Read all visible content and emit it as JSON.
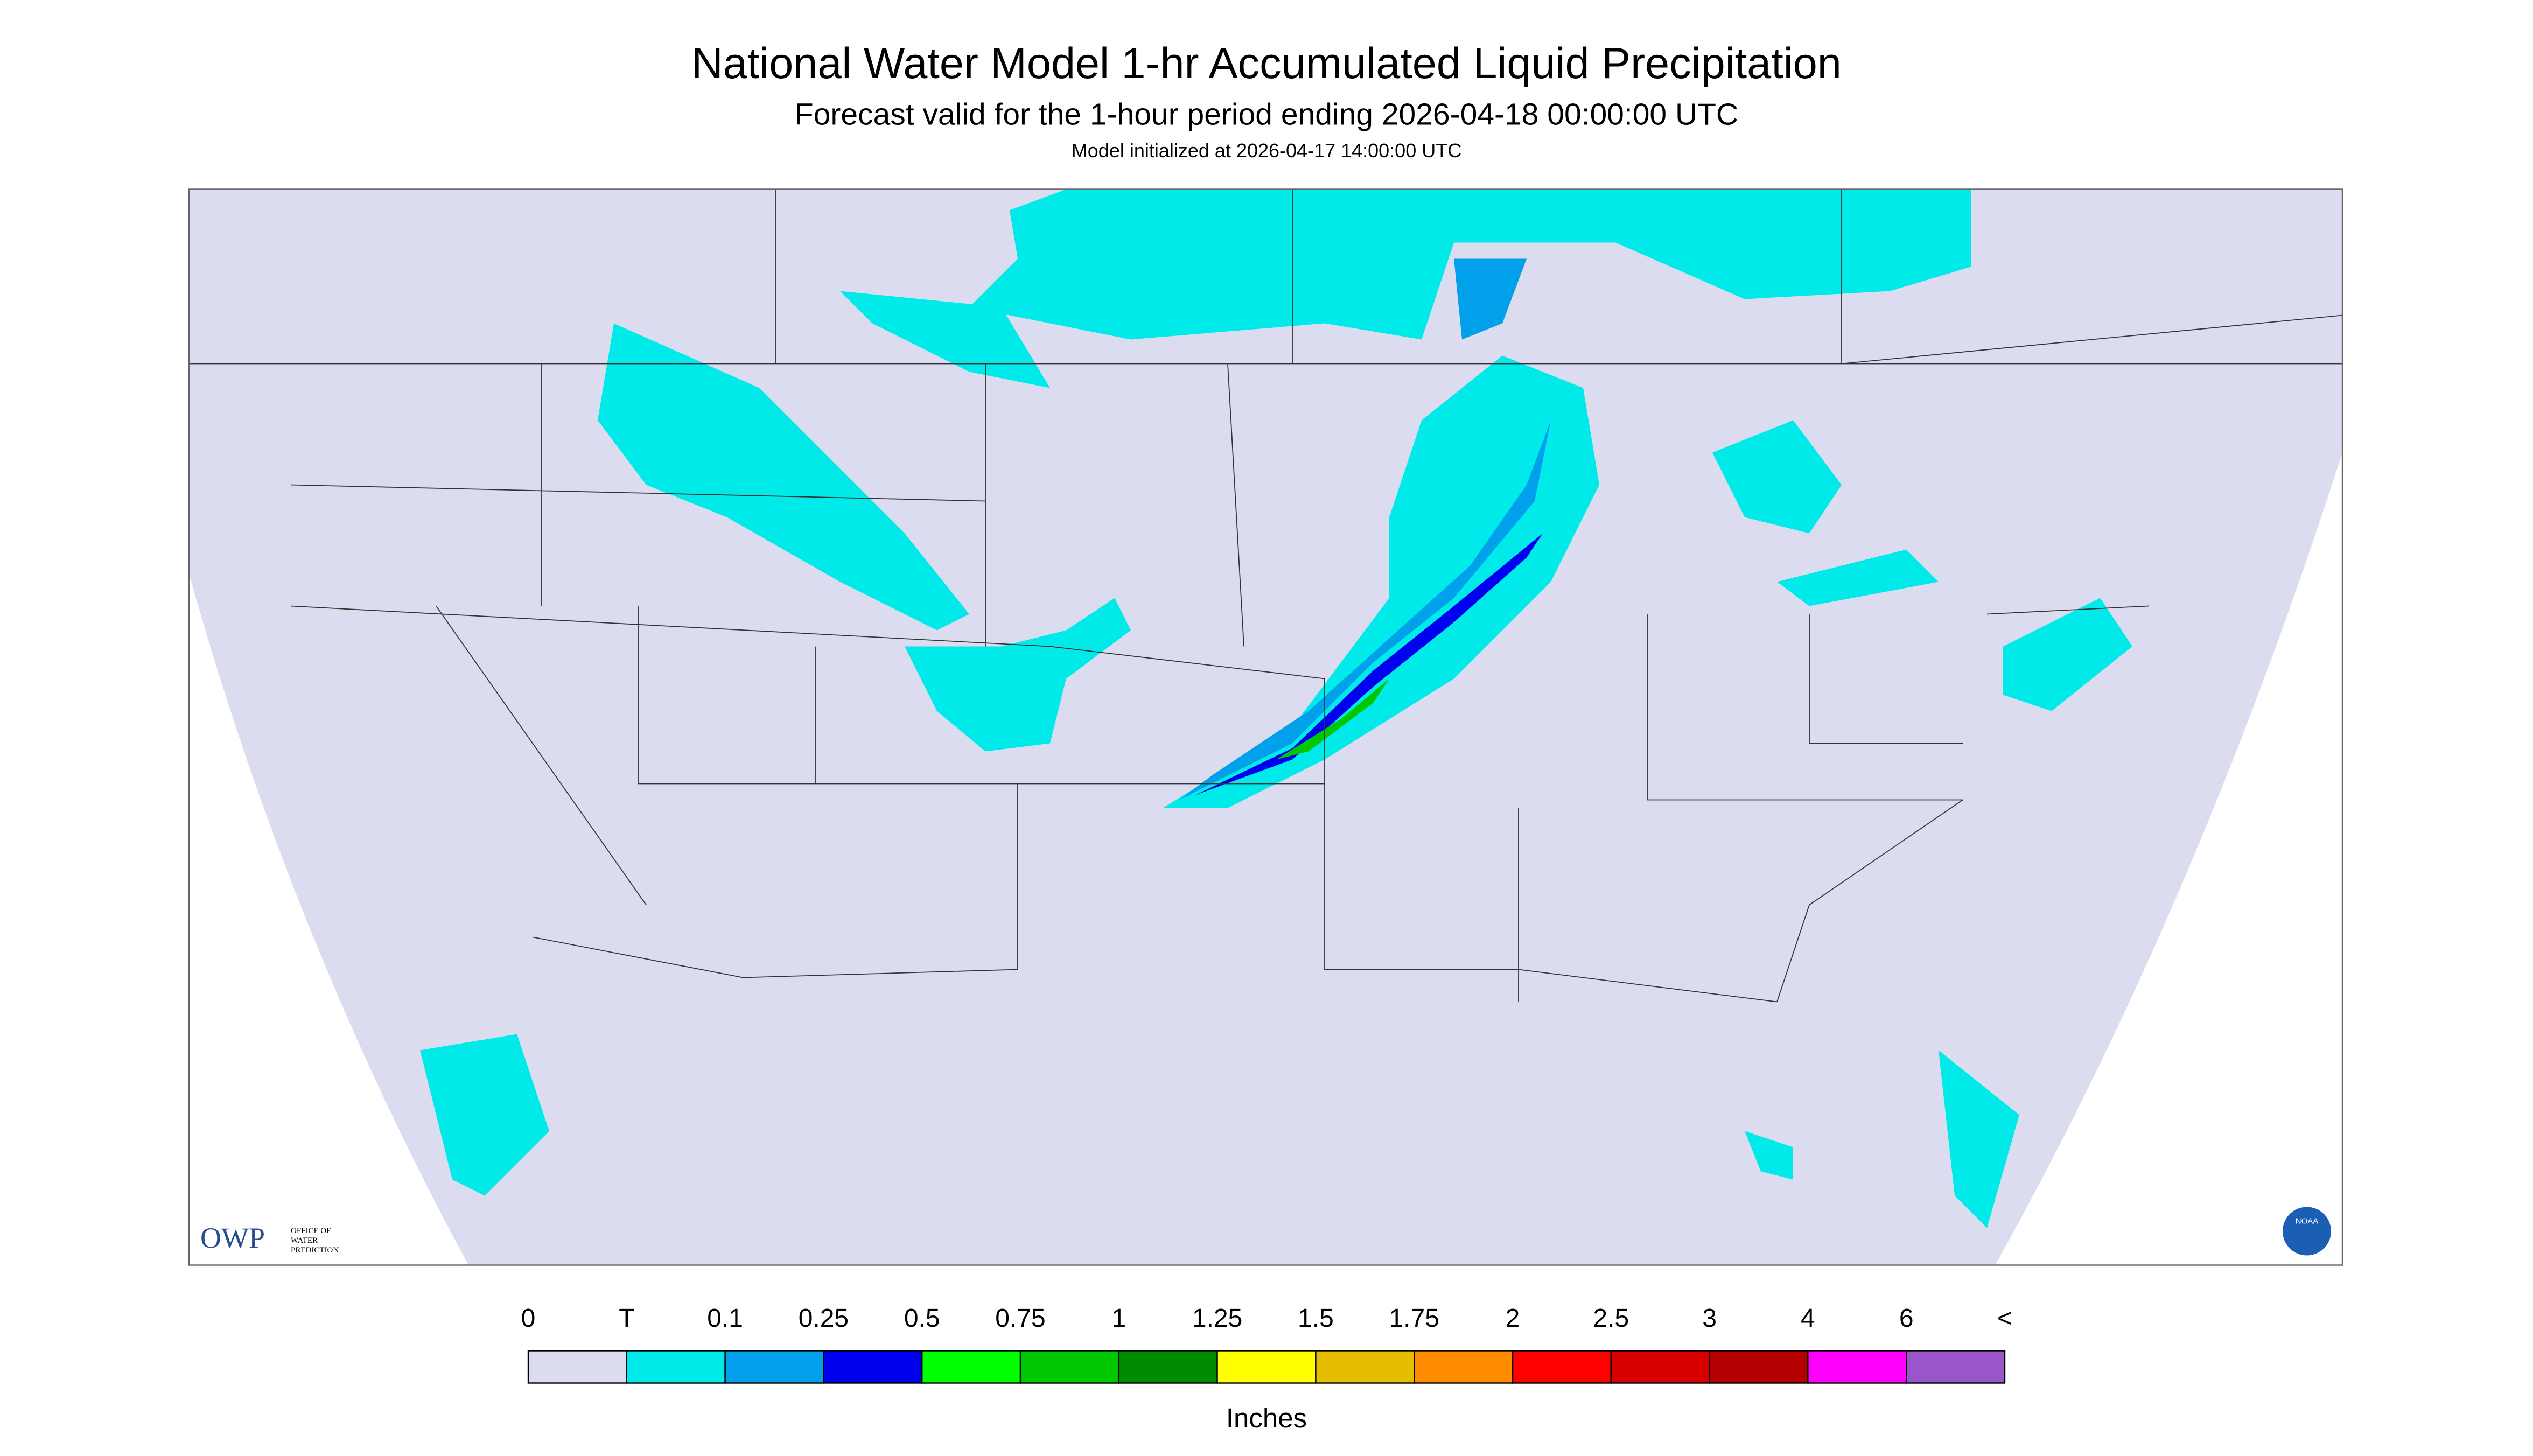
{
  "header": {
    "title": "National Water Model 1-hr Accumulated Liquid Precipitation",
    "subtitle": "Forecast valid for the 1-hour period ending 2026-04-18 00:00:00 UTC",
    "init_line": "Model initialized at 2026-04-17 14:00:00 UTC"
  },
  "logo": {
    "owp": "OWP",
    "office": [
      "OFFICE OF",
      "WATER",
      "PREDICTION"
    ],
    "noaa": "NOAA"
  },
  "legend": {
    "labels": [
      "0",
      "T",
      "0.1",
      "0.25",
      "0.5",
      "0.75",
      "1",
      "1.25",
      "1.5",
      "1.75",
      "2",
      "2.5",
      "3",
      "4",
      "6",
      "<"
    ],
    "colors": [
      "#dcdcf0",
      "#00eaea",
      "#00a0ea",
      "#0000f0",
      "#00ff00",
      "#00c800",
      "#008c00",
      "#ffff00",
      "#e6be00",
      "#ff8c00",
      "#ff0000",
      "#d70000",
      "#b40000",
      "#ff00ff",
      "#9955c9"
    ],
    "units": "Inches"
  }
}
